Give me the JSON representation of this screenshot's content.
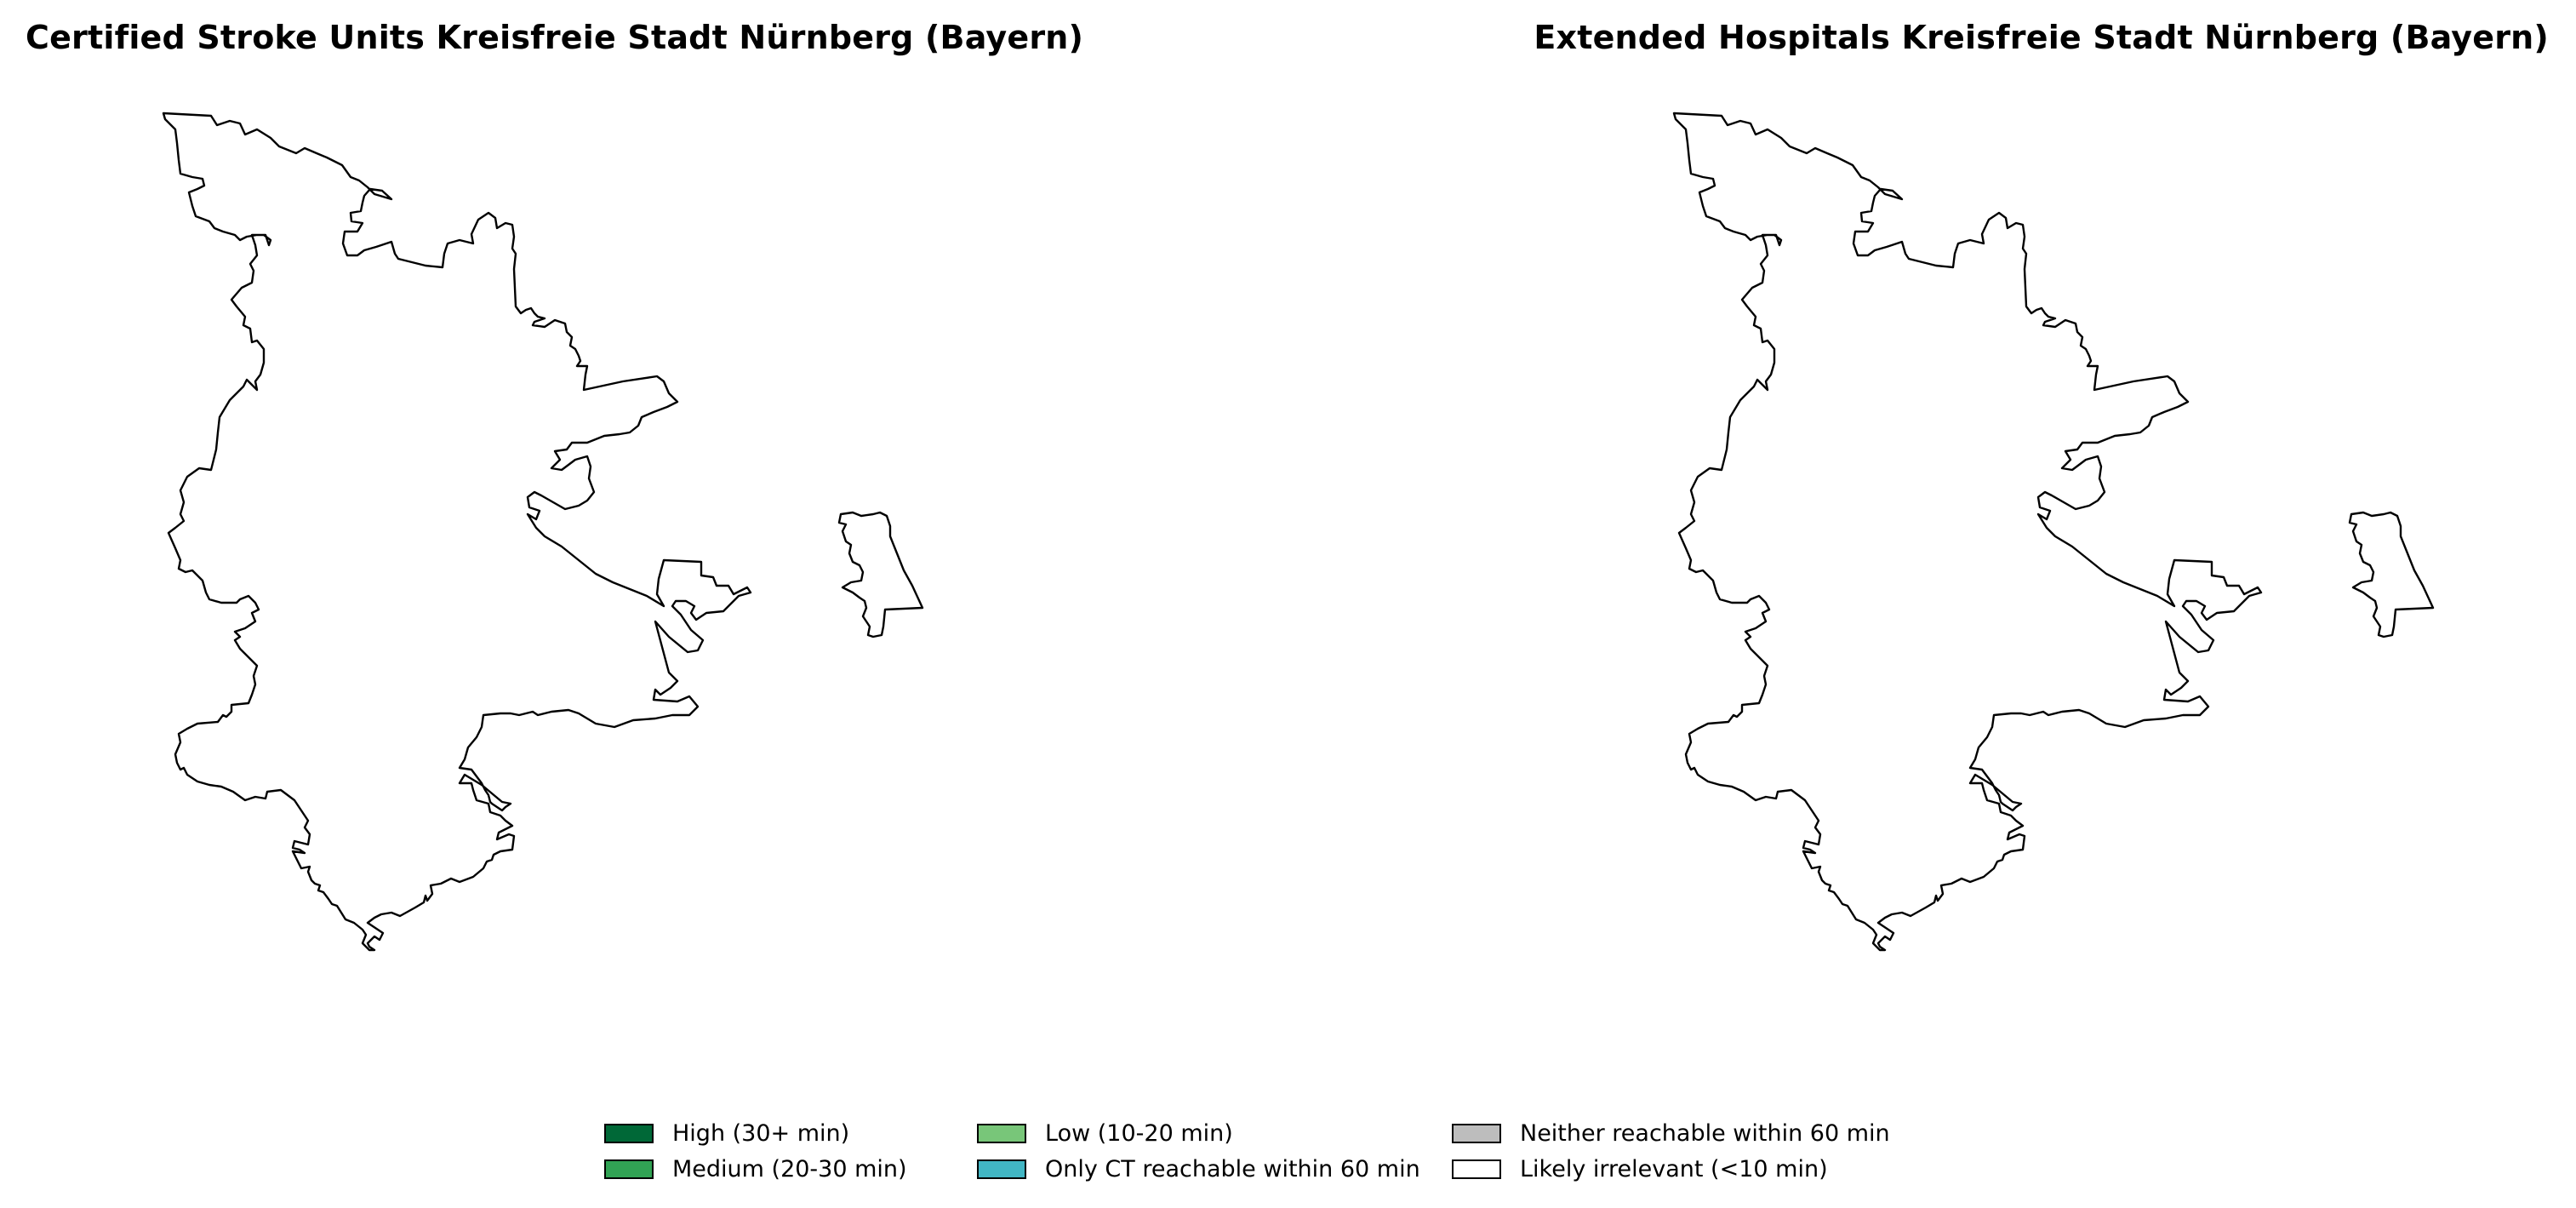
{
  "maps": [
    {
      "title": "Certified Stroke Units Kreisfreie Stadt Nürnberg (Bayern)"
    },
    {
      "title": "Extended Hospitals Kreisfreie Stadt Nürnberg (Bayern)"
    }
  ],
  "legend": {
    "items": [
      {
        "label": "High (30+ min)",
        "color": "#006837"
      },
      {
        "label": "Medium (20-30 min)",
        "color": "#31a354"
      },
      {
        "label": "Low (10-20 min)",
        "color": "#78c679"
      },
      {
        "label": "Only CT reachable within 60 min",
        "color": "#41b6c4"
      },
      {
        "label": "Neither reachable within 60 min",
        "color": "#bdbdbd"
      },
      {
        "label": "Likely irrelevant (<10 min)",
        "color": "#ffffff"
      }
    ]
  },
  "boundary_color": "#000000",
  "fill_color": "#ffffff"
}
